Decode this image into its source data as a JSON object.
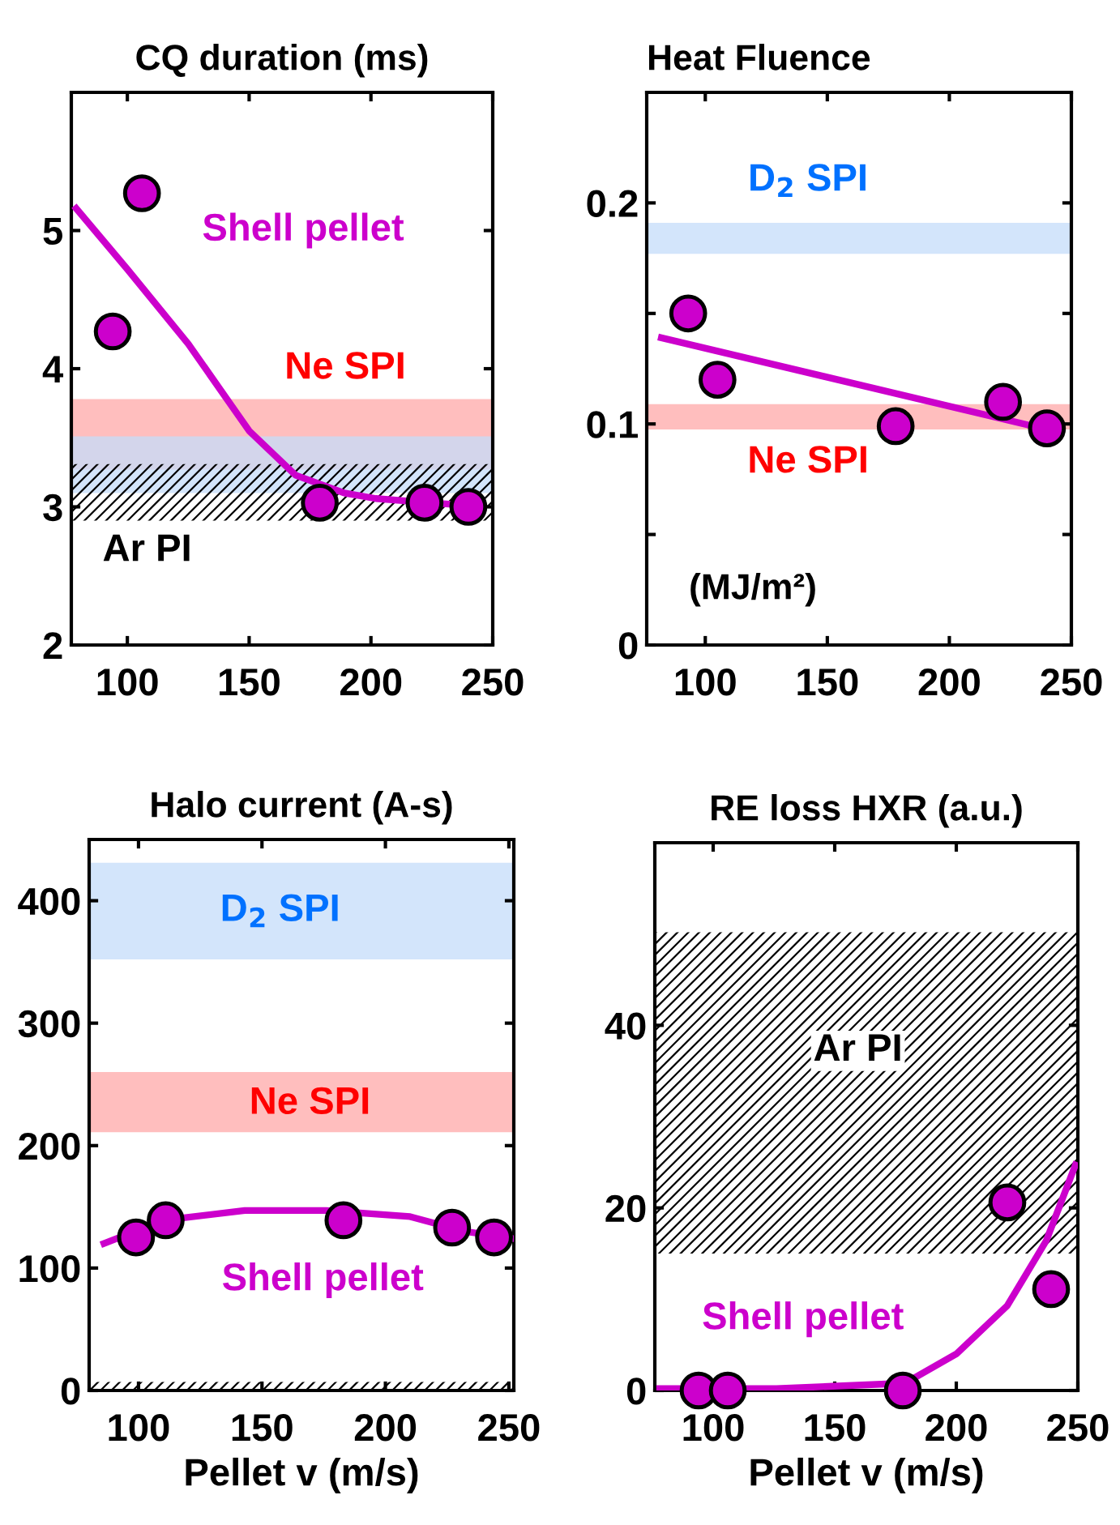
{
  "chart_data": [
    {
      "type": "scatter",
      "title": "CQ duration (ms)",
      "xlim": [
        77,
        250
      ],
      "xticks": [
        100,
        150,
        200,
        250
      ],
      "ylim": [
        2,
        6
      ],
      "yticks": [
        2,
        3,
        4,
        5
      ],
      "grid": false,
      "bands": [
        {
          "axis": "y",
          "from": 3.27,
          "to": 3.78,
          "label": "Ne SPI",
          "color": "#ffa8a8"
        },
        {
          "axis": "y",
          "from": 3.1,
          "to": 3.51,
          "color": "#c4dcfa"
        },
        {
          "axis": "y",
          "from": 2.9,
          "to": 3.31,
          "label": "Ar PI"
        }
      ],
      "series": [
        {
          "marker": "circle",
          "color": "#cc00cc",
          "x": [
            94,
            106,
            179,
            222,
            240
          ],
          "values": [
            4.27,
            5.27,
            3.03,
            3.03,
            3.0
          ]
        },
        {
          "type": "line",
          "marker": "none",
          "name": "Shell pellet",
          "color": "#cc00cc",
          "x": [
            79,
            100,
            125,
            150,
            169,
            189,
            202,
            224,
            240
          ],
          "values": [
            5.16,
            4.72,
            4.18,
            3.55,
            3.23,
            3.1,
            3.06,
            3.03,
            3.01
          ]
        }
      ]
    },
    {
      "type": "scatter",
      "title": "Heat Fluence",
      "xlim": [
        76,
        250
      ],
      "xticks": [
        100,
        150,
        200,
        250
      ],
      "ylim": [
        0,
        0.25
      ],
      "yticks": [
        0,
        {
          "value": 0.05,
          "label": null
        },
        0.1,
        {
          "value": 0.15,
          "label": null
        },
        0.2
      ],
      "grid": false,
      "annotations": [
        "(MJ/m²)"
      ],
      "bands": [
        {
          "axis": "y",
          "from": 0.177,
          "to": 0.191,
          "label": "D$_{2}$ SPI",
          "color": "#c4dcfa"
        },
        {
          "axis": "y",
          "from": 0.0975,
          "to": 0.109,
          "label": "Ne SPI",
          "color": "#ffa8a8"
        }
      ],
      "series": [
        {
          "marker": "circle",
          "color": "#cc00cc",
          "x": [
            93,
            105,
            178,
            222,
            240
          ],
          "values": [
            0.15,
            0.12,
            0.099,
            0.11,
            0.098
          ]
        },
        {
          "type": "line",
          "marker": "none",
          "color": "#cc00cc",
          "x": [
            82,
            240
          ],
          "values": [
            0.139,
            0.0975
          ]
        }
      ]
    },
    {
      "type": "scatter",
      "title": "Halo current (A-s)",
      "xlabel": "Pellet v (m/s)",
      "xlim": [
        80,
        252
      ],
      "xticks": [
        100,
        150,
        200,
        250
      ],
      "ylim": [
        0,
        450
      ],
      "yticks": [
        0,
        100,
        200,
        300,
        400
      ],
      "grid": false,
      "bands": [
        {
          "axis": "y",
          "from": 352,
          "to": 431,
          "label": "D$_{2}$ SPI",
          "color": "#c4dcfa"
        },
        {
          "axis": "y",
          "from": 211,
          "to": 260,
          "label": "Ne SPI",
          "color": "#ffa8a8"
        },
        {
          "axis": "y",
          "from": 0,
          "to": 7
        }
      ],
      "series": [
        {
          "marker": "circle",
          "color": "#cc00cc",
          "x": [
            99,
            111,
            183,
            227,
            244
          ],
          "values": [
            125,
            139,
            139,
            133,
            125
          ]
        },
        {
          "type": "line",
          "marker": "none",
          "name": "Shell pellet",
          "color": "#cc00cc",
          "x": [
            86,
            110,
            143,
            176,
            210,
            232,
            252
          ],
          "values": [
            120,
            139,
            147,
            147,
            142,
            130,
            124
          ]
        }
      ]
    },
    {
      "type": "scatter",
      "title": "RE loss HXR (a.u.)",
      "xlabel": "Pellet v (m/s)",
      "xlim": [
        76,
        250
      ],
      "xticks": [
        100,
        150,
        200,
        250
      ],
      "ylim": [
        0,
        60
      ],
      "yticks": [
        0,
        20,
        40
      ],
      "grid": false,
      "bands": [
        {
          "axis": "y",
          "from": 15,
          "to": 50.2,
          "label": "Ar PI"
        }
      ],
      "series": [
        {
          "marker": "circle",
          "color": "#cc00cc",
          "x": [
            94,
            106,
            178,
            221,
            239
          ],
          "values": [
            0,
            0,
            0,
            20.6,
            11.1
          ]
        },
        {
          "type": "line",
          "marker": "none",
          "name": "Shell pellet",
          "color": "#cc00cc",
          "x": [
            78,
            126,
            179,
            200,
            221,
            237,
            249
          ],
          "values": [
            0.2,
            0.2,
            0.8,
            4,
            9.3,
            16.4,
            24.7
          ]
        }
      ]
    }
  ]
}
